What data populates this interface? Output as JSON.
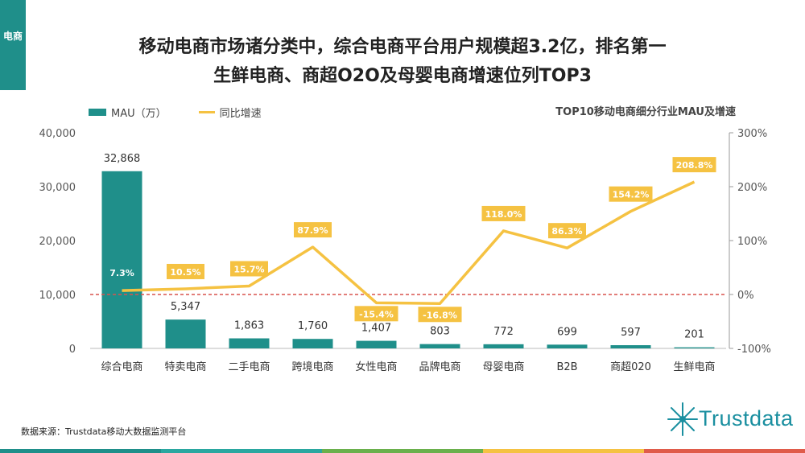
{
  "side_tag": "电商",
  "title_line1": "移动电商市场诸分类中，综合电商平台用户规模超3.2亿，排名第一",
  "title_line2": "生鲜电商、商超O2O及母婴电商增速位列TOP3",
  "legend": {
    "bar_label": "MAU（万）",
    "line_label": "同比增速"
  },
  "subtitle": "TOP10移动电商细分行业MAU及增速",
  "source": "数据来源：Trustdata移动大数据监测平台",
  "logo_text": "Trustdata",
  "colors": {
    "bar": "#1f8f8a",
    "line": "#f5c242",
    "zero_line": "#d9534f",
    "label_box": "#f5c242"
  },
  "chart_data": {
    "type": "bar+line",
    "title": "TOP10移动电商细分行业MAU及增速",
    "categories": [
      "综合电商",
      "特卖电商",
      "二手电商",
      "跨境电商",
      "女性电商",
      "品牌电商",
      "母婴电商",
      "B2B",
      "商超020",
      "生鲜电商"
    ],
    "series": [
      {
        "name": "MAU（万）",
        "axis": "left",
        "type": "bar",
        "values": [
          32868,
          5347,
          1863,
          1760,
          1407,
          803,
          772,
          699,
          597,
          201
        ],
        "labels": [
          "32,868",
          "5,347",
          "1,863",
          "1,760",
          "1,407",
          "803",
          "772",
          "699",
          "597",
          "201"
        ]
      },
      {
        "name": "同比增速",
        "axis": "right",
        "type": "line",
        "values": [
          7.3,
          10.5,
          15.7,
          87.9,
          -15.4,
          -16.8,
          118.0,
          86.3,
          154.2,
          208.8
        ],
        "labels": [
          "7.3%",
          "10.5%",
          "15.7%",
          "87.9%",
          "-15.4%",
          "-16.8%",
          "118.0%",
          "86.3%",
          "154.2%",
          "208.8%"
        ]
      }
    ],
    "left_axis": {
      "min": 0,
      "max": 40000,
      "ticks": [
        0,
        10000,
        20000,
        30000,
        40000
      ],
      "tick_labels": [
        "0",
        "10,000",
        "20,000",
        "30,000",
        "40,000"
      ]
    },
    "right_axis": {
      "min": -100,
      "max": 300,
      "ticks": [
        -100,
        0,
        100,
        200,
        300
      ],
      "tick_labels": [
        "-100%",
        "0%",
        "100%",
        "200%",
        "300%"
      ]
    }
  }
}
